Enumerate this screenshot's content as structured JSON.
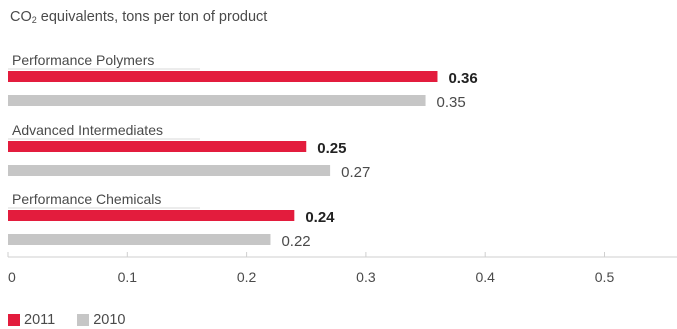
{
  "chart_data": {
    "type": "bar",
    "orientation": "horizontal",
    "title_parts": {
      "before": "CO",
      "sub": "2",
      "after": " equivalents, tons per ton of product"
    },
    "categories": [
      "Performance Polymers",
      "Advanced Intermediates",
      "Performance Chemicals"
    ],
    "series": [
      {
        "name": "2011",
        "color": "#e31c3d",
        "values": [
          0.36,
          0.25,
          0.24
        ],
        "labels": [
          "0.36",
          "0.25",
          "0.24"
        ],
        "label_style": "bold"
      },
      {
        "name": "2010",
        "color": "#c6c6c6",
        "values": [
          0.35,
          0.27,
          0.22
        ],
        "labels": [
          "0.35",
          "0.27",
          "0.22"
        ],
        "label_style": "normal"
      }
    ],
    "xlim": [
      0,
      0.55
    ],
    "ticks": [
      0,
      0.1,
      0.2,
      0.3,
      0.4,
      0.5
    ],
    "tick_labels": [
      "0",
      "0.1",
      "0.2",
      "0.3",
      "0.4",
      "0.5"
    ],
    "grid": false,
    "legend_position": "bottom-left"
  }
}
